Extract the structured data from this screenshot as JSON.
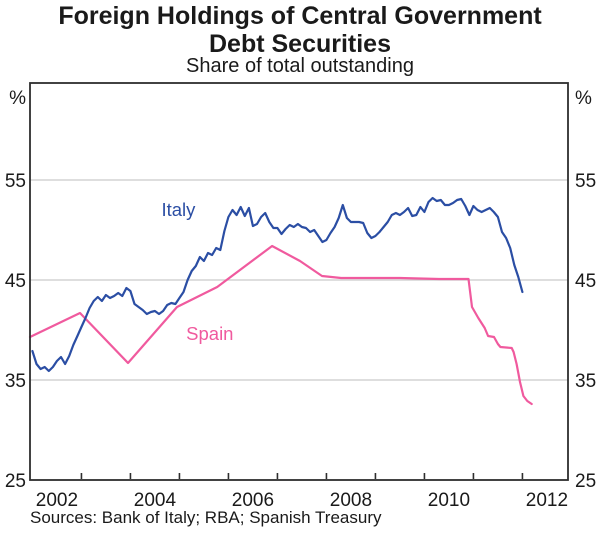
{
  "chart_data": {
    "type": "line",
    "title": "Foreign Holdings of Central Government Debt Securities",
    "title_lines": [
      "Foreign Holdings of Central Government",
      "Debt Securities"
    ],
    "subtitle": "Share of total outstanding",
    "source": "Sources: Bank of Italy; RBA; Spanish Treasury",
    "unit": "%",
    "grid": true,
    "colors": {
      "italy_blue": "#2b4ea4",
      "spain_pink": "#f05a9e",
      "gridline": "#c9c9c9",
      "axis": "#2e2e2e",
      "text": "#1a1a1a"
    },
    "x_axis": {
      "min": 2001.95,
      "max": 2012.93,
      "ticks": [
        2003,
        2004,
        2005,
        2006,
        2007,
        2008,
        2009,
        2010,
        2011,
        2012
      ],
      "labels": [
        {
          "t": 2002.5,
          "text": "2002"
        },
        {
          "t": 2004.5,
          "text": "2004"
        },
        {
          "t": 2006.5,
          "text": "2006"
        },
        {
          "t": 2008.5,
          "text": "2008"
        },
        {
          "t": 2010.5,
          "text": "2010"
        },
        {
          "t": 2012.5,
          "text": "2012"
        }
      ]
    },
    "y_axis": {
      "min": 25,
      "max": 64.7,
      "gridlines": [
        35,
        45,
        55
      ],
      "labels": [
        25,
        35,
        45,
        55
      ],
      "unit": "%"
    },
    "series": [
      {
        "name": "Spain",
        "color_key": "spain_pink",
        "label": {
          "text": "Spain",
          "t": 2005.62,
          "v": 39.0
        },
        "points": [
          [
            2001.95,
            39.3
          ],
          [
            2002.97,
            41.7
          ],
          [
            2003.95,
            36.7
          ],
          [
            2004.95,
            42.3
          ],
          [
            2005.77,
            44.3
          ],
          [
            2006.89,
            48.4
          ],
          [
            2007.46,
            46.9
          ],
          [
            2007.91,
            45.4
          ],
          [
            2008.3,
            45.2
          ],
          [
            2009.5,
            45.2
          ],
          [
            2010.3,
            45.1
          ],
          [
            2010.9,
            45.1
          ],
          [
            2010.97,
            42.3
          ],
          [
            2011.1,
            41.2
          ],
          [
            2011.23,
            40.2
          ],
          [
            2011.3,
            39.4
          ],
          [
            2011.42,
            39.3
          ],
          [
            2011.5,
            38.6
          ],
          [
            2011.55,
            38.3
          ],
          [
            2011.78,
            38.2
          ],
          [
            2011.82,
            37.8
          ],
          [
            2011.88,
            36.6
          ],
          [
            2011.95,
            34.8
          ],
          [
            2012.02,
            33.4
          ],
          [
            2012.1,
            32.9
          ],
          [
            2012.19,
            32.6
          ]
        ]
      },
      {
        "name": "Italy",
        "color_key": "italy_blue",
        "label": {
          "text": "Italy",
          "t": 2004.98,
          "v": 51.4
        },
        "start": 2002.0,
        "step": 0.0833333,
        "values": [
          37.9,
          36.6,
          36.1,
          36.3,
          35.9,
          36.3,
          36.9,
          37.3,
          36.6,
          37.4,
          38.5,
          39.4,
          40.3,
          41.2,
          42.2,
          42.9,
          43.3,
          42.9,
          43.5,
          43.2,
          43.4,
          43.7,
          43.4,
          44.2,
          43.9,
          42.6,
          42.3,
          42.0,
          41.6,
          41.8,
          41.9,
          41.6,
          41.9,
          42.5,
          42.7,
          42.6,
          43.2,
          43.8,
          45.0,
          45.9,
          46.4,
          47.3,
          46.9,
          47.7,
          47.5,
          48.2,
          48.0,
          49.9,
          51.3,
          52.0,
          51.5,
          52.3,
          51.4,
          52.2,
          50.4,
          50.6,
          51.3,
          51.7,
          50.8,
          50.2,
          50.2,
          49.6,
          50.1,
          50.5,
          50.3,
          50.6,
          50.3,
          50.2,
          49.8,
          50.0,
          49.4,
          48.8,
          49.0,
          49.7,
          50.3,
          51.2,
          52.5,
          51.2,
          50.8,
          50.8,
          50.8,
          50.7,
          49.7,
          49.2,
          49.4,
          49.8,
          50.3,
          50.8,
          51.5,
          51.7,
          51.5,
          51.8,
          52.2,
          51.4,
          51.5,
          52.3,
          51.8,
          52.8,
          53.2,
          52.9,
          53.0,
          52.5,
          52.5,
          52.7,
          53.0,
          53.1,
          52.4,
          51.5,
          52.4,
          52.0,
          51.8,
          52.0,
          52.2,
          51.8,
          51.3,
          49.8,
          49.2,
          48.2,
          46.5,
          45.3,
          43.8
        ]
      }
    ]
  }
}
